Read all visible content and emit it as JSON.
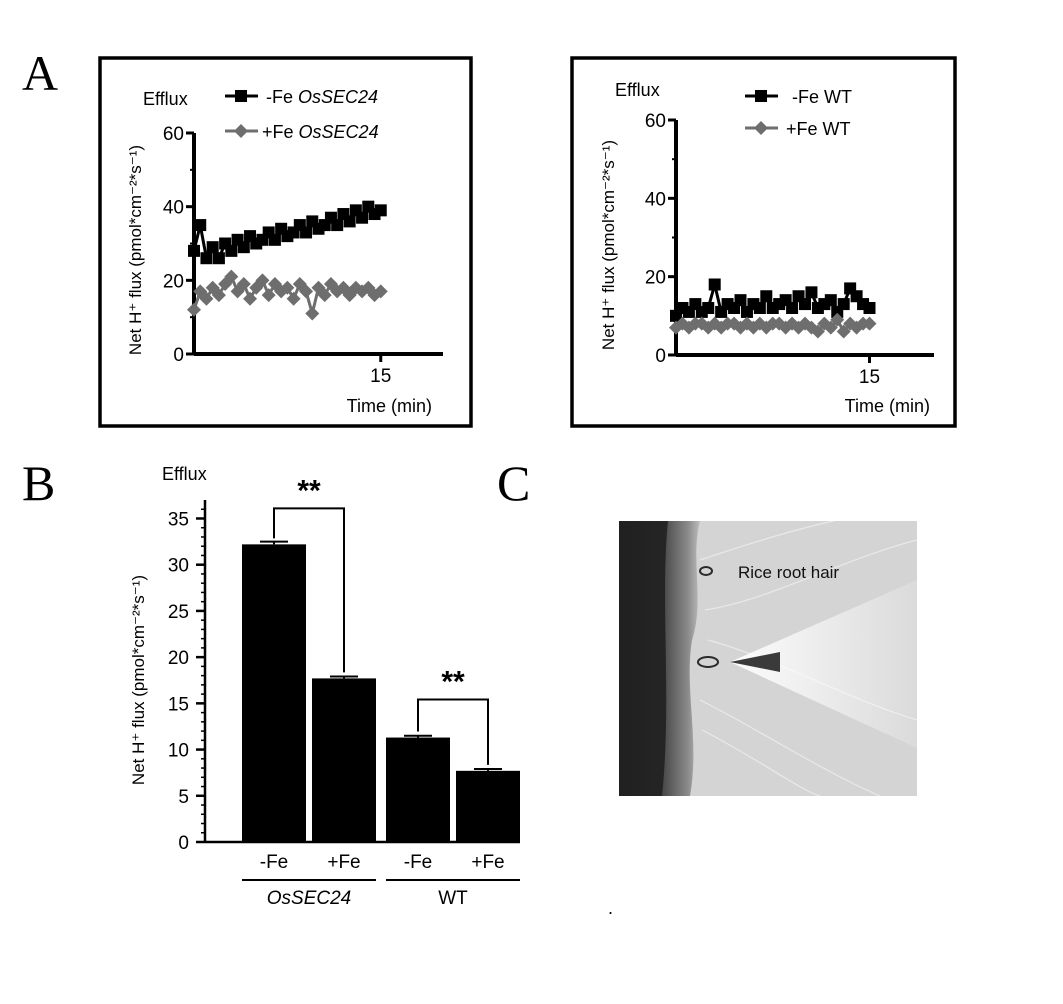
{
  "figure": {
    "panel_labels": [
      "A",
      "B",
      "C"
    ],
    "dot_mark": "."
  },
  "colors": {
    "minus_fe": "#000000",
    "plus_fe": "#6e6e6e",
    "bar": "#000000",
    "frame": "#000000"
  },
  "chart_data": [
    {
      "panel": "A",
      "type": "line",
      "corner_label": "Efflux",
      "ylabel": "Net H⁺ flux (pmol*cm⁻²*s⁻¹)",
      "xlabel": "Time (min)",
      "xticks": [
        15
      ],
      "yticks": [
        0,
        20,
        40,
        60
      ],
      "ylim": [
        0,
        60
      ],
      "xlim": [
        0,
        20
      ],
      "legend_placement": "top",
      "series": [
        {
          "legend_prefix": "-Fe",
          "legend_italic": "OsSEC24",
          "color": "#000000",
          "marker": "square",
          "x": [
            0.0,
            0.5,
            1.0,
            1.5,
            2.0,
            2.5,
            3.0,
            3.5,
            4.0,
            4.5,
            5.0,
            5.5,
            6.0,
            6.5,
            7.0,
            7.5,
            8.0,
            8.5,
            9.0,
            9.5,
            10.0,
            10.5,
            11.0,
            11.5,
            12.0,
            12.5,
            13.0,
            13.5,
            14.0,
            14.5,
            15.0
          ],
          "y": [
            28,
            35,
            26,
            29,
            26,
            30,
            28,
            31,
            29,
            32,
            30,
            31,
            33,
            31,
            34,
            32,
            33,
            35,
            33,
            36,
            34,
            35,
            37,
            35,
            38,
            36,
            39,
            37,
            40,
            38,
            39
          ]
        },
        {
          "legend_prefix": "+Fe",
          "legend_italic": "OsSEC24",
          "color": "#6e6e6e",
          "marker": "diamond",
          "x": [
            0.0,
            0.5,
            1.0,
            1.5,
            2.0,
            2.5,
            3.0,
            3.5,
            4.0,
            4.5,
            5.0,
            5.5,
            6.0,
            6.5,
            7.0,
            7.5,
            8.0,
            8.5,
            9.0,
            9.5,
            10.0,
            10.5,
            11.0,
            11.5,
            12.0,
            12.5,
            13.0,
            13.5,
            14.0,
            14.5,
            15.0
          ],
          "y": [
            12,
            17,
            15,
            18,
            16,
            19,
            21,
            17,
            19,
            15,
            18,
            20,
            16,
            19,
            17,
            18,
            15,
            19,
            17,
            11,
            18,
            16,
            19,
            17,
            18,
            16,
            18,
            17,
            18,
            16,
            17
          ]
        }
      ]
    },
    {
      "panel": "A",
      "type": "line",
      "corner_label": "Efflux",
      "ylabel": "Net H⁺ flux (pmol*cm⁻²*s⁻¹)",
      "xlabel": "Time (min)",
      "xticks": [
        15
      ],
      "yticks": [
        0,
        20,
        40,
        60
      ],
      "ylim": [
        0,
        60
      ],
      "xlim": [
        0,
        20
      ],
      "legend_placement": "top",
      "series": [
        {
          "legend_prefix": "-Fe",
          "legend_italic": "",
          "legend_suffix": "WT",
          "color": "#000000",
          "marker": "square",
          "x": [
            0.0,
            0.5,
            1.0,
            1.5,
            2.0,
            2.5,
            3.0,
            3.5,
            4.0,
            4.5,
            5.0,
            5.5,
            6.0,
            6.5,
            7.0,
            7.5,
            8.0,
            8.5,
            9.0,
            9.5,
            10.0,
            10.5,
            11.0,
            11.5,
            12.0,
            12.5,
            13.0,
            13.5,
            14.0,
            14.5,
            15.0
          ],
          "y": [
            10,
            12,
            11,
            13,
            11,
            12,
            18,
            11,
            13,
            12,
            14,
            11,
            13,
            12,
            15,
            12,
            13,
            14,
            12,
            15,
            13,
            16,
            12,
            13,
            14,
            11,
            13,
            17,
            15,
            13,
            12
          ]
        },
        {
          "legend_prefix": "+Fe",
          "legend_italic": "",
          "legend_suffix": "WT",
          "color": "#6e6e6e",
          "marker": "diamond",
          "x": [
            0.0,
            0.5,
            1.0,
            1.5,
            2.0,
            2.5,
            3.0,
            3.5,
            4.0,
            4.5,
            5.0,
            5.5,
            6.0,
            6.5,
            7.0,
            7.5,
            8.0,
            8.5,
            9.0,
            9.5,
            10.0,
            10.5,
            11.0,
            11.5,
            12.0,
            12.5,
            13.0,
            13.5,
            14.0,
            14.5,
            15.0
          ],
          "y": [
            7,
            8,
            7,
            8,
            8,
            7,
            8,
            7,
            8,
            8,
            7,
            8,
            7,
            8,
            7,
            8,
            8,
            7,
            8,
            7,
            8,
            7,
            6,
            8,
            7,
            9,
            6,
            8,
            7,
            8,
            8
          ]
        }
      ]
    },
    {
      "panel": "B",
      "type": "bar",
      "corner_label": "Efflux",
      "ylabel": "Net H⁺ flux (pmol*cm⁻²*s⁻¹)",
      "categories": [
        "-Fe",
        "+Fe",
        "-Fe",
        "+Fe"
      ],
      "groups": [
        {
          "label": "OsSEC24",
          "italic": true
        },
        {
          "label": "WT",
          "italic": false
        }
      ],
      "values": [
        32.2,
        17.7,
        11.3,
        7.7
      ],
      "errors": [
        0.3,
        0.2,
        0.2,
        0.2
      ],
      "yticks": [
        0,
        5,
        10,
        15,
        20,
        25,
        30,
        35
      ],
      "ylim": [
        0,
        37
      ],
      "significance": [
        "**",
        "**"
      ]
    }
  ],
  "photo": {
    "panel": "C",
    "label": "Rice root hair"
  }
}
